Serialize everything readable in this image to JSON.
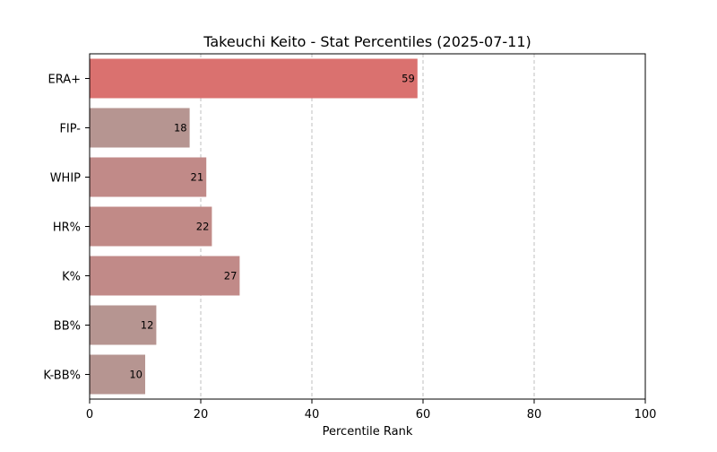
{
  "chart_data": {
    "type": "bar",
    "orientation": "horizontal",
    "title": "Takeuchi Keito - Stat Percentiles (2025-07-11)",
    "xlabel": "Percentile Rank",
    "ylabel": "",
    "xlim": [
      0,
      100
    ],
    "xticks": [
      0,
      20,
      40,
      60,
      80,
      100
    ],
    "grid": "x-dashed",
    "categories": [
      "ERA+",
      "FIP-",
      "WHIP",
      "HR%",
      "K%",
      "BB%",
      "K-BB%"
    ],
    "values": [
      59,
      18,
      21,
      22,
      27,
      12,
      10
    ],
    "colors": [
      "#da716f",
      "#b69591",
      "#c18a88",
      "#c18a87",
      "#c18a88",
      "#b69591",
      "#b69591"
    ]
  }
}
